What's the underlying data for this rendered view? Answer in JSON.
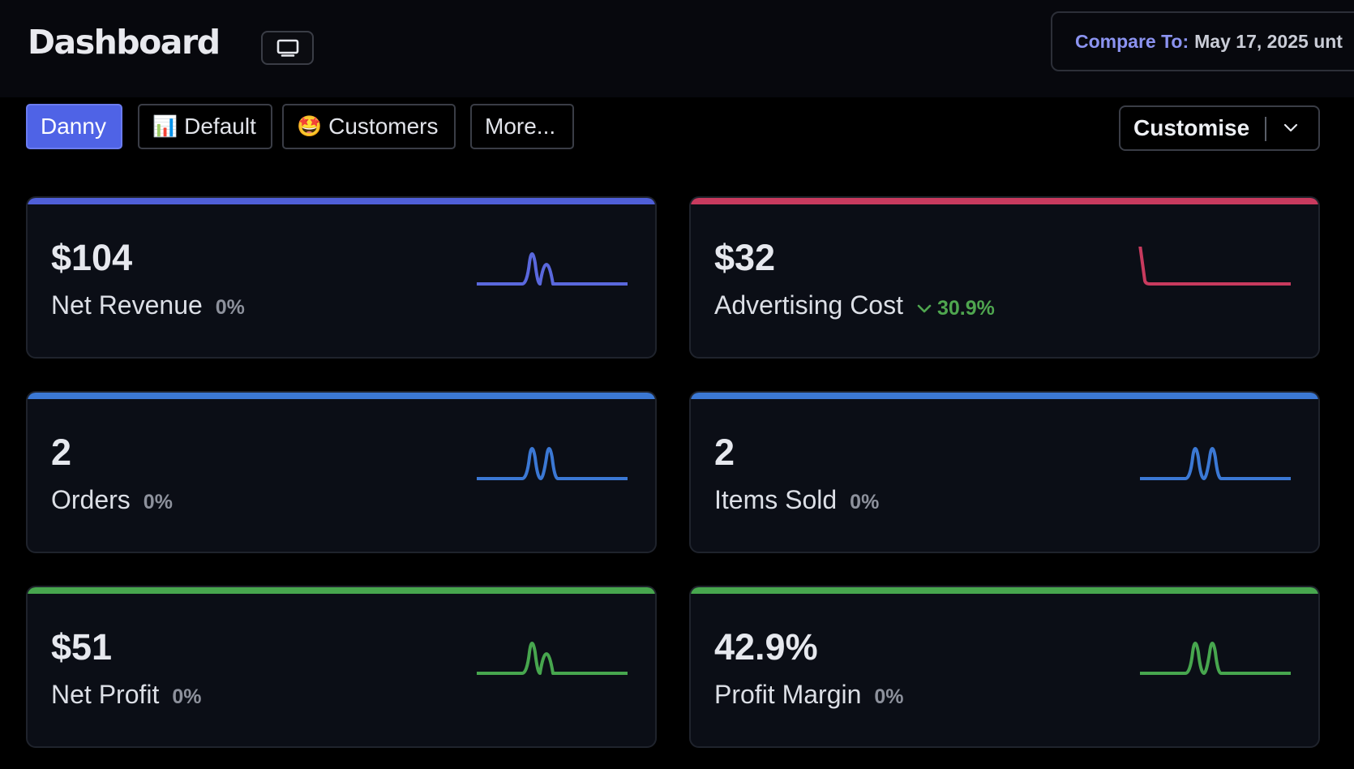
{
  "header": {
    "title": "Dashboard",
    "screen_icon": "monitor-icon",
    "compare": {
      "label": "Compare To:",
      "value": "May 17, 2025 unt"
    }
  },
  "tabs": [
    {
      "label": "Danny",
      "emoji": "",
      "active": true
    },
    {
      "label": "Default",
      "emoji": "📊",
      "active": false
    },
    {
      "label": "Customers",
      "emoji": "🤩",
      "active": false
    },
    {
      "label": "More...",
      "emoji": "",
      "active": false
    }
  ],
  "customise": {
    "label": "Customise",
    "icon": "chevron-down-icon"
  },
  "colors": {
    "revenue": "#4f5fd8",
    "advertising": "#c83a5e",
    "orders": "#3b78d4",
    "profit": "#47a64e",
    "good_change": "#4fa64f"
  },
  "cards": {
    "net_revenue": {
      "value": "$104",
      "label": "Net Revenue",
      "change": "0%"
    },
    "advertising": {
      "value": "$32",
      "label": "Advertising Cost",
      "change": "30.9%",
      "change_icon": "chevron-down-icon",
      "change_direction": "down-good"
    },
    "orders": {
      "value": "2",
      "label": "Orders",
      "change": "0%"
    },
    "items_sold": {
      "value": "2",
      "label": "Items Sold",
      "change": "0%"
    },
    "net_profit": {
      "value": "$51",
      "label": "Net Profit",
      "change": "0%"
    },
    "profit_margin": {
      "value": "42.9%",
      "label": "Profit Margin",
      "change": "0%"
    }
  }
}
